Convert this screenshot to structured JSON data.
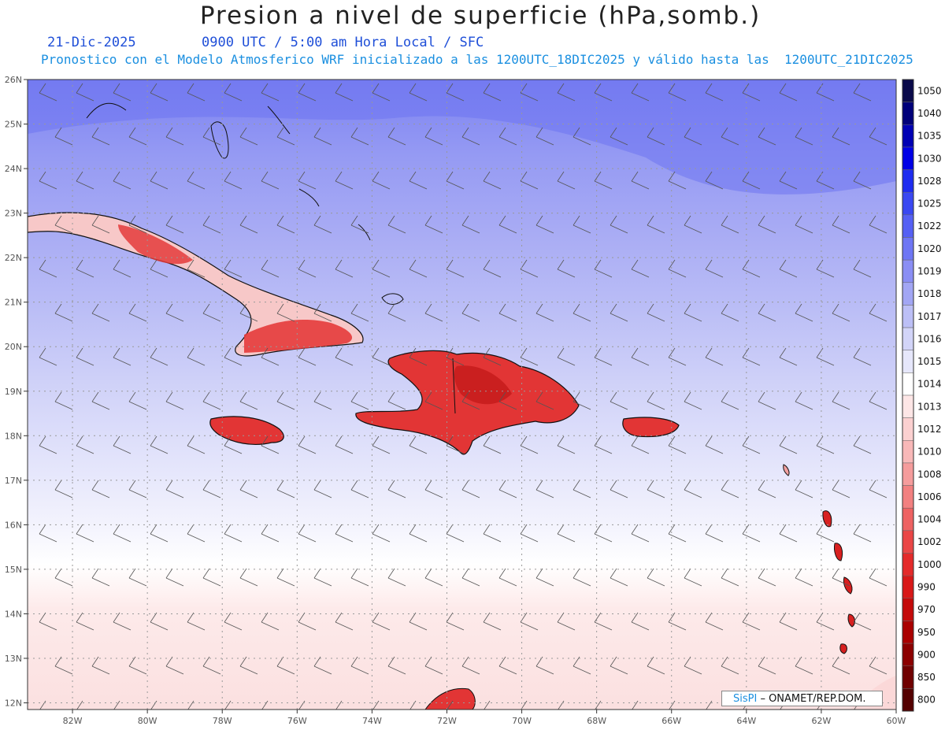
{
  "header": {
    "title": "Presion a nivel de superficie (hPa,somb.)",
    "date": "21-Dic-2025",
    "time": "0900 UTC / 5:00 am Hora Local / SFC",
    "model_info": "Pronostico con el Modelo Atmosferico WRF inicializado a las 1200UTC_18DIC2025 y válido hasta las  1200UTC_21DIC2025"
  },
  "axes": {
    "lon_labels": [
      "82W",
      "80W",
      "78W",
      "76W",
      "74W",
      "72W",
      "70W",
      "68W",
      "66W",
      "64W",
      "62W",
      "60W"
    ],
    "lat_labels": [
      "26N",
      "25N",
      "24N",
      "23N",
      "22N",
      "21N",
      "20N",
      "19N",
      "18N",
      "17N",
      "16N",
      "15N",
      "14N",
      "13N",
      "12N"
    ],
    "lon_range": [
      -83.2,
      -60.0
    ],
    "lat_range": [
      11.85,
      26.0
    ],
    "grid": true
  },
  "colorbar": {
    "levels": [
      {
        "label": "1050",
        "color": "#0a0a4a"
      },
      {
        "label": "1040",
        "color": "#00007a"
      },
      {
        "label": "1035",
        "color": "#0000b4"
      },
      {
        "label": "1030",
        "color": "#0000e6"
      },
      {
        "label": "1028",
        "color": "#1e2cf0"
      },
      {
        "label": "1025",
        "color": "#3a48f2"
      },
      {
        "label": "1022",
        "color": "#5560f4"
      },
      {
        "label": "1020",
        "color": "#6e76f4"
      },
      {
        "label": "1019",
        "color": "#8a8ef4"
      },
      {
        "label": "1018",
        "color": "#a2a6f4"
      },
      {
        "label": "1017",
        "color": "#bcbff6"
      },
      {
        "label": "1016",
        "color": "#d2d4f8"
      },
      {
        "label": "1015",
        "color": "#e6e7fb"
      },
      {
        "label": "1014",
        "color": "#ffffff"
      },
      {
        "label": "1013",
        "color": "#fde6e6"
      },
      {
        "label": "1012",
        "color": "#fbd0d0"
      },
      {
        "label": "1010",
        "color": "#f8b8b8"
      },
      {
        "label": "1008",
        "color": "#f59c9c"
      },
      {
        "label": "1006",
        "color": "#f28080"
      },
      {
        "label": "1004",
        "color": "#ee6262"
      },
      {
        "label": "1002",
        "color": "#ea4646"
      },
      {
        "label": "1000",
        "color": "#e42a2a"
      },
      {
        "label": "990",
        "color": "#d81818"
      },
      {
        "label": "970",
        "color": "#c40a0a"
      },
      {
        "label": "950",
        "color": "#aa0000"
      },
      {
        "label": "900",
        "color": "#8c0000"
      },
      {
        "label": "850",
        "color": "#700000"
      },
      {
        "label": "800",
        "color": "#540000"
      }
    ]
  },
  "credit": {
    "brand": "SisPI",
    "text": " – ONAMET/REP.DOM."
  }
}
